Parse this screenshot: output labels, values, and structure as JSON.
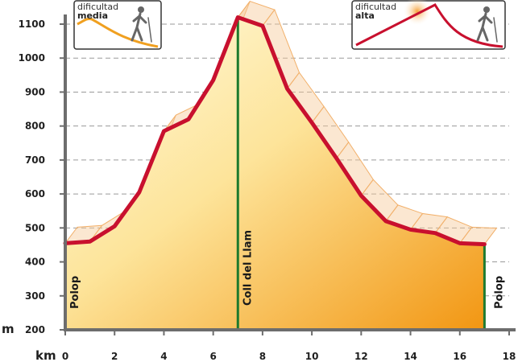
{
  "chart_data": {
    "type": "area",
    "xlabel": "km",
    "ylabel": "m",
    "xlim": [
      0,
      18
    ],
    "ylim": [
      200,
      1100
    ],
    "x_ticks": [
      "0",
      "2",
      "4",
      "6",
      "8",
      "10",
      "12",
      "14",
      "16",
      "18"
    ],
    "y_ticks": [
      "200",
      "300",
      "400",
      "500",
      "600",
      "700",
      "800",
      "900",
      "1000",
      "1100"
    ],
    "grid": "horizontal-dashed",
    "series": [
      {
        "x": [
          0,
          1,
          2,
          3,
          4,
          5,
          6,
          7,
          8,
          9,
          10,
          11,
          12,
          13,
          14,
          15,
          16,
          17
        ],
        "values": [
          455,
          460,
          505,
          605,
          785,
          820,
          935,
          1120,
          1095,
          910,
          810,
          705,
          595,
          520,
          495,
          485,
          455,
          452
        ]
      }
    ],
    "markers": [
      {
        "x": 0,
        "label": "Polop"
      },
      {
        "x": 7,
        "label": "Coll del Llam"
      },
      {
        "x": 17,
        "label": "Polop"
      }
    ],
    "difficulty_badges": [
      {
        "line1": "dificultad",
        "line2": "media",
        "position": "top-left"
      },
      {
        "line1": "dificultad",
        "line2": "alta",
        "position": "top-right"
      }
    ]
  },
  "colors": {
    "profile_line": "#c8102e",
    "marker_line": "#1e7a2e",
    "axis": "#6d6d6d",
    "grid": "#9a9a9a",
    "fill_top": "#fff6c8",
    "fill_bottom": "#f39a18",
    "shadow_fill": "#f7c99a",
    "shadow_stroke": "#f2b06a"
  }
}
